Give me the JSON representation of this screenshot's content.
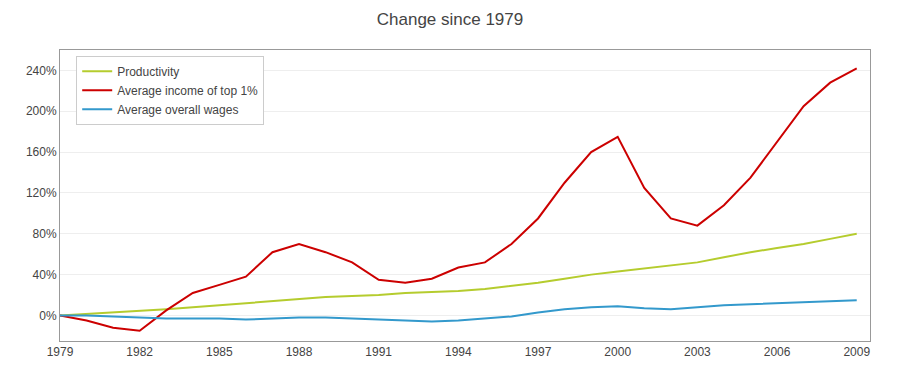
{
  "chart_data": {
    "type": "line",
    "title": "Change since 1979",
    "x": [
      1979,
      1980,
      1981,
      1982,
      1983,
      1984,
      1985,
      1986,
      1987,
      1988,
      1989,
      1990,
      1991,
      1992,
      1993,
      1994,
      1995,
      1996,
      1997,
      1998,
      1999,
      2000,
      2001,
      2002,
      2003,
      2004,
      2005,
      2006,
      2007,
      2008,
      2009
    ],
    "series": [
      {
        "name": "Productivity",
        "color": "#b5cc2e",
        "values": [
          0,
          1.5,
          3,
          4,
          6,
          8,
          10,
          12,
          14,
          16,
          18,
          19,
          20,
          22,
          23,
          24,
          26,
          29,
          32,
          36,
          40,
          43,
          46,
          49,
          52,
          57,
          62,
          66,
          70,
          75,
          80
        ]
      },
      {
        "name": "Average income of top 1%",
        "color": "#cc0000",
        "values": [
          0,
          -5,
          -12,
          -15,
          5,
          22,
          30,
          38,
          62,
          70,
          62,
          52,
          35,
          32,
          36,
          47,
          52,
          70,
          95,
          130,
          160,
          175,
          125,
          95,
          88,
          108,
          135,
          170,
          205,
          228,
          242
        ]
      },
      {
        "name": "Average overall wages",
        "color": "#3399cc",
        "values": [
          0,
          0,
          -1,
          -2,
          -3,
          -3,
          -3,
          -4,
          -3,
          -2,
          -2,
          -3,
          -4,
          -5,
          -6,
          -5,
          -3,
          -1,
          3,
          6,
          8,
          9,
          7,
          6,
          8,
          10,
          11,
          12,
          13,
          14,
          15
        ]
      }
    ],
    "xlim": [
      1979,
      2009.5
    ],
    "xticks": [
      1979,
      1982,
      1985,
      1988,
      1991,
      1994,
      1997,
      2000,
      2003,
      2006,
      2009
    ],
    "ylim": [
      -25,
      260
    ],
    "yticks": [
      {
        "value": 0,
        "label": "0%"
      },
      {
        "value": 40,
        "label": "40%"
      },
      {
        "value": 80,
        "label": "80%"
      },
      {
        "value": 120,
        "label": "120%"
      },
      {
        "value": 160,
        "label": "160%"
      },
      {
        "value": 200,
        "label": "200%"
      },
      {
        "value": 240,
        "label": "240%"
      }
    ],
    "grid": "y",
    "legend": "upper left"
  }
}
